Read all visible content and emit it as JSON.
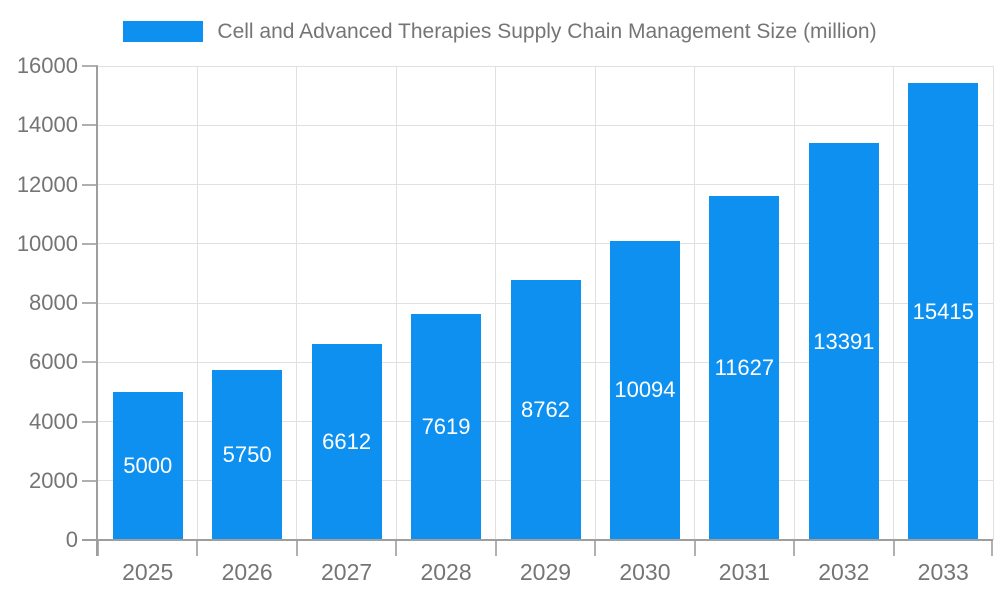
{
  "chart_data": {
    "type": "bar",
    "title": "Cell and Advanced Therapies Supply Chain Management Size (million)",
    "categories": [
      "2025",
      "2026",
      "2027",
      "2028",
      "2029",
      "2030",
      "2031",
      "2032",
      "2033"
    ],
    "values": [
      5000,
      5750,
      6612,
      7619,
      8762,
      10094,
      11627,
      13391,
      15415
    ],
    "xlabel": "",
    "ylabel": "",
    "ylim": [
      0,
      16000
    ],
    "yticks": [
      0,
      2000,
      4000,
      6000,
      8000,
      10000,
      12000,
      14000,
      16000
    ],
    "legend_position": "top",
    "grid": true,
    "value_labels": "inside-center",
    "colors": {
      "bar": "#0e90f0",
      "value_label": "#ffffff",
      "axis_text": "#757575",
      "grid_line": "#e0e0e0",
      "axis_line": "#9e9e9e",
      "tick": "#b0b0b0",
      "background": "#ffffff"
    }
  }
}
